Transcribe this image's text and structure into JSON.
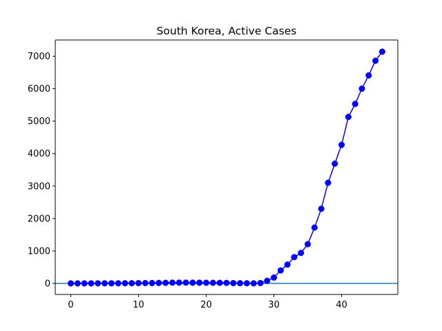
{
  "chart_data": {
    "type": "line",
    "title": "South Korea, Active Cases",
    "xlabel": "",
    "ylabel": "",
    "xlim": [
      -2.3,
      48.3
    ],
    "ylim": [
      -340,
      7500
    ],
    "x_ticks": [
      0,
      10,
      20,
      30,
      40
    ],
    "y_ticks": [
      0,
      1000,
      2000,
      3000,
      4000,
      5000,
      6000,
      7000
    ],
    "grid": false,
    "legend": "none",
    "reference_line": {
      "y": 0,
      "color": "#1f77b4"
    },
    "series": [
      {
        "color": "#0000ff",
        "marker": "circle",
        "x": [
          0,
          1,
          2,
          3,
          4,
          5,
          6,
          7,
          8,
          9,
          10,
          11,
          12,
          13,
          14,
          15,
          16,
          17,
          18,
          19,
          20,
          21,
          22,
          23,
          24,
          25,
          26,
          27,
          28,
          29,
          30,
          31,
          32,
          33,
          34,
          35,
          36,
          37,
          38,
          39,
          40,
          41,
          42,
          43,
          44,
          45,
          46
        ],
        "values": [
          1,
          1,
          2,
          2,
          3,
          4,
          4,
          4,
          6,
          7,
          10,
          11,
          12,
          15,
          19,
          24,
          25,
          25,
          23,
          22,
          20,
          19,
          18,
          16,
          10,
          7,
          5,
          3,
          12,
          80,
          180,
          400,
          580,
          810,
          940,
          1210,
          1720,
          2300,
          3100,
          3690,
          4270,
          5130,
          5530,
          6000,
          6410,
          6860,
          7140
        ]
      }
    ]
  }
}
